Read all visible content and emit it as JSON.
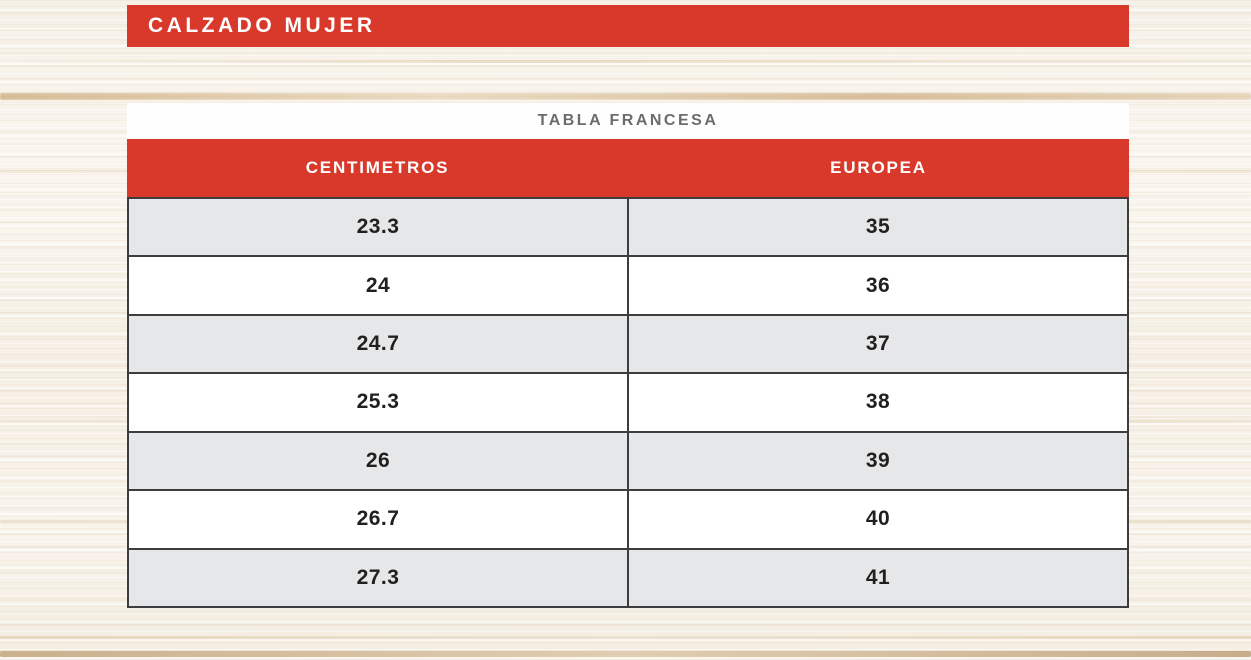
{
  "banner": {
    "label": "CALZADO MUJER"
  },
  "chart_data": {
    "type": "table",
    "title": "TABLA FRANCESA",
    "columns": [
      "CENTIMETROS",
      "EUROPEA"
    ],
    "rows": [
      [
        "23.3",
        "35"
      ],
      [
        "24",
        "36"
      ],
      [
        "24.7",
        "37"
      ],
      [
        "25.3",
        "38"
      ],
      [
        "26",
        "39"
      ],
      [
        "26.7",
        "40"
      ],
      [
        "27.3",
        "41"
      ]
    ],
    "row_striping": "alternating, first row shaded gray",
    "legend_position": "none",
    "grid": "solid dark cell borders on body rows only"
  },
  "colors": {
    "accent_red": "#d9392b",
    "alt_row_gray": "#e6e7e8",
    "table_title_gray": "#6a6c6e",
    "cell_text_dark": "#221f1f",
    "border_dark": "#3d3d3e",
    "strip_white": "#fefefe",
    "wood_base": "#f9f5ee"
  }
}
